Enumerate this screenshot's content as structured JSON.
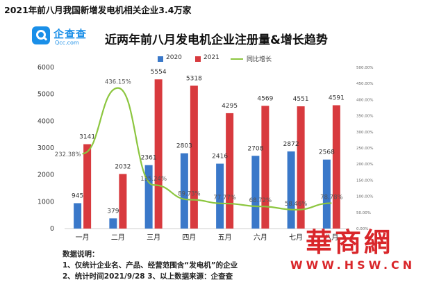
{
  "headline": "2021年前八月我国新增发电机相关企业3.4万家",
  "logo": {
    "name_cn": "企查查",
    "name_en": "Qcc.com"
  },
  "chart_data": {
    "type": "bar",
    "title": "近两年前八月发电机企业注册量&增长趋势",
    "categories": [
      "一月",
      "二月",
      "三月",
      "四月",
      "五月",
      "六月",
      "七月",
      "八月"
    ],
    "series": [
      {
        "name": "2020",
        "type": "bar",
        "axis": "left",
        "color": "#3a78c9",
        "values": [
          945,
          379,
          2361,
          2803,
          2416,
          2708,
          2872,
          2568
        ]
      },
      {
        "name": "2021",
        "type": "bar",
        "axis": "left",
        "color": "#d83a3e",
        "values": [
          3141,
          2032,
          5554,
          5318,
          4295,
          4569,
          4551,
          4591
        ]
      },
      {
        "name": "同比增长",
        "type": "line",
        "axis": "right",
        "color": "#8cc63f",
        "values": [
          232.38,
          436.15,
          135.24,
          89.73,
          77.77,
          68.72,
          58.46,
          78.78
        ],
        "labels": [
          "232.38%",
          "436.15%",
          "135.24%",
          "89.73%",
          "77.77%",
          "68.72%",
          "58.46%",
          "78.78%"
        ]
      }
    ],
    "y_left": {
      "min": 0,
      "max": 6000,
      "ticks": [
        "0",
        "1000",
        "2000",
        "3000",
        "4000",
        "5000",
        "6000"
      ]
    },
    "y_right": {
      "min": 0,
      "max": 500,
      "ticks": [
        "0.00%",
        "50.00%",
        "100.00%",
        "150.00%",
        "200.00%",
        "250.00%",
        "300.00%",
        "350.00%",
        "400.00%",
        "450.00%",
        "500.00%"
      ]
    },
    "legend_position": "top"
  },
  "notes": {
    "title": "数据说明：",
    "line1": "1、仅统计企业名、产品、经营范围含“发电机”的企业",
    "line2": "2、统计时间2021/9/28      3、以上数据来源：企查查"
  },
  "watermark": {
    "cn": "華商網",
    "en": "WWW.HSW.CN"
  }
}
